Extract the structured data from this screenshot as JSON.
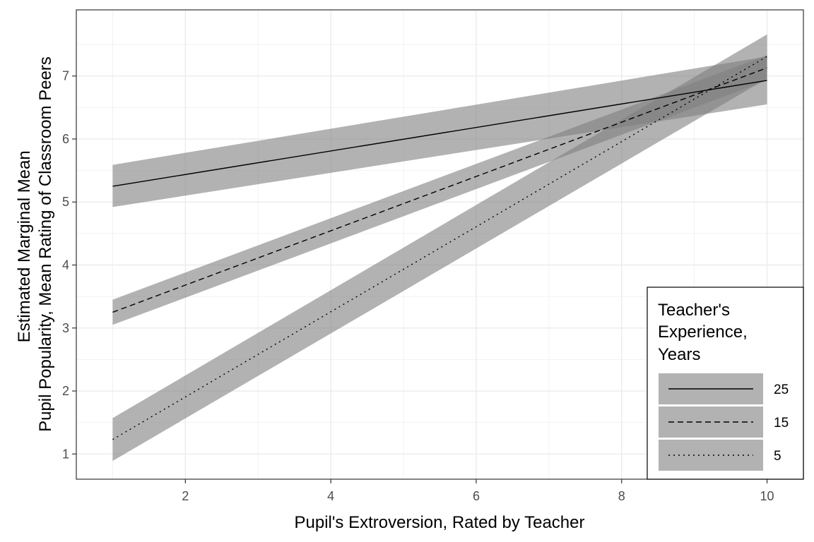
{
  "chart_data": {
    "type": "line",
    "xlabel": "Pupil's Extroversion, Rated by Teacher",
    "ylabel_lines": [
      "Estimated Marginal Mean",
      "Pupil Popularity, Mean Rating of Classroom Peers"
    ],
    "x_ticks": [
      2,
      4,
      6,
      8,
      10
    ],
    "y_ticks": [
      1,
      2,
      3,
      4,
      5,
      6,
      7
    ],
    "xlim": [
      0.5,
      10.5
    ],
    "ylim": [
      0.6,
      8.05
    ],
    "grid": true,
    "ribbon_color": "#7f7f7f",
    "legend": {
      "placement": "bottom-right",
      "title_lines": [
        "Teacher's",
        "Experience,",
        "Years"
      ]
    },
    "series": [
      {
        "name": "25",
        "dash": "solid",
        "x": [
          1,
          10
        ],
        "y": [
          5.25,
          6.93
        ],
        "lower": [
          4.92,
          6.55
        ],
        "upper": [
          5.59,
          7.31
        ]
      },
      {
        "name": "15",
        "dash": "dashed",
        "x": [
          1,
          10
        ],
        "y": [
          3.25,
          7.13
        ],
        "lower": [
          3.05,
          6.93
        ],
        "upper": [
          3.45,
          7.33
        ]
      },
      {
        "name": "5",
        "dash": "dotted",
        "x": [
          1,
          10
        ],
        "y": [
          1.23,
          7.31
        ],
        "lower": [
          0.89,
          6.96
        ],
        "upper": [
          1.57,
          7.66
        ]
      }
    ]
  }
}
